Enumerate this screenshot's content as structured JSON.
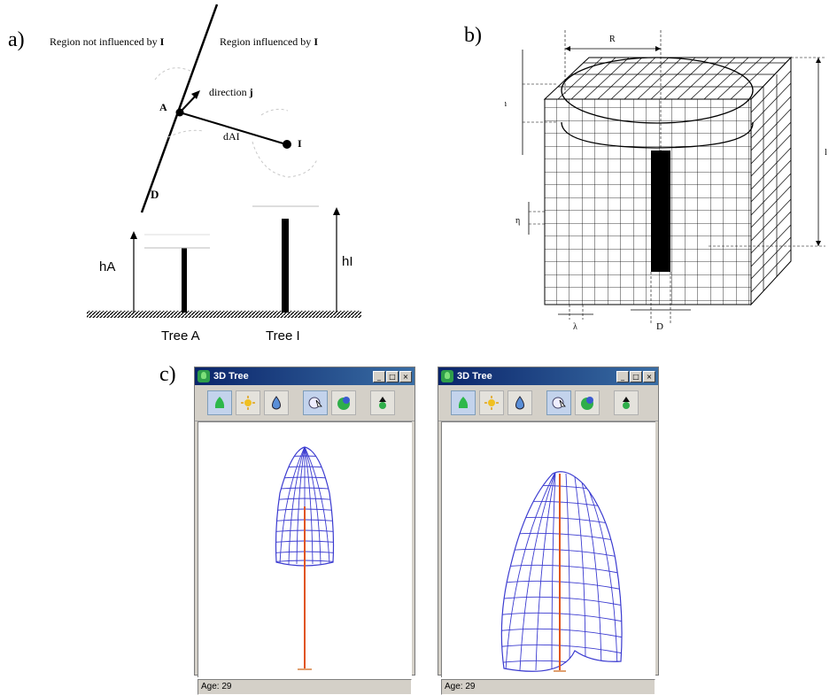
{
  "panel_a": {
    "label": "a)",
    "region_left": "Region not influenced by",
    "region_right": "Region influenced by",
    "region_symbol": "I",
    "direction_label": "direction",
    "direction_symbol": "j",
    "point_a": "A",
    "point_i": "I",
    "distance_label": "dAI",
    "line_label": "D",
    "height_a": "hA",
    "height_i": "hI",
    "tree_a": "Tree A",
    "tree_i": "Tree I"
  },
  "panel_b": {
    "label": "b)",
    "radius": "R",
    "h": "h",
    "eta": "η",
    "lambda": "λ",
    "diameter": "D",
    "height": "l"
  },
  "panel_c": {
    "label": "c)",
    "windows": [
      {
        "title": "3D Tree",
        "status": "Age: 29"
      },
      {
        "title": "3D Tree",
        "status": "Age: 29"
      }
    ],
    "window_buttons": [
      "_",
      "□",
      "×"
    ],
    "toolbar_icons": [
      "crown-icon",
      "sun-icon",
      "water-drop-icon",
      "cursor-icon",
      "sphere-icon",
      "tree-growth-icon"
    ]
  }
}
